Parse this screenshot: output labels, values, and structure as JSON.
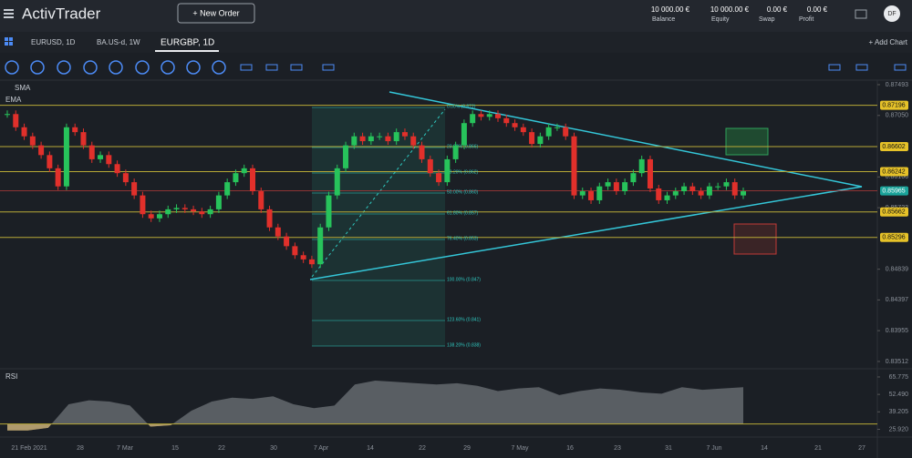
{
  "header": {
    "logo": "ActivTrader",
    "new_order": "+ New Order",
    "stats": [
      {
        "value": "10 000.00 €",
        "label": "Balance"
      },
      {
        "value": "10 000.00 €",
        "label": "Equity"
      },
      {
        "value": "0.00 €",
        "label": "Swap"
      },
      {
        "value": "0.00 €",
        "label": "Profit"
      }
    ],
    "avatar": "DF"
  },
  "tabs": [
    "EURUSD, 1D",
    "BA.US-d, 1W",
    "EURGBP, 1D"
  ],
  "add_chart": "+ Add Chart",
  "indicators": [
    "SMA",
    "EMA"
  ],
  "chart_data": {
    "type": "candlestick",
    "closes": [
      0.8707,
      0.8688,
      0.8675,
      0.8662,
      0.8648,
      0.8629,
      0.8603,
      0.8688,
      0.8681,
      0.8662,
      0.8642,
      0.8648,
      0.8635,
      0.8622,
      0.8609,
      0.859,
      0.8563,
      0.8557,
      0.8563,
      0.857,
      0.8572,
      0.857,
      0.8567,
      0.8563,
      0.857,
      0.859,
      0.8609,
      0.8622,
      0.8629,
      0.8596,
      0.857,
      0.8544,
      0.8531,
      0.8517,
      0.8504,
      0.8498,
      0.8491,
      0.8544,
      0.859,
      0.8629,
      0.8662,
      0.8675,
      0.8668,
      0.8675,
      0.8675,
      0.8668,
      0.8681,
      0.8675,
      0.8662,
      0.8642,
      0.8622,
      0.8609,
      0.8642,
      0.8662,
      0.8694,
      0.8707,
      0.8703,
      0.8707,
      0.8701,
      0.8694,
      0.8688,
      0.8681,
      0.8664,
      0.8675,
      0.8688,
      0.8688,
      0.8675,
      0.859,
      0.8596,
      0.8583,
      0.8603,
      0.8609,
      0.8596,
      0.8609,
      0.8622,
      0.8642,
      0.86,
      0.8583,
      0.859,
      0.8596,
      0.8603,
      0.8596,
      0.859,
      0.8603,
      0.8603,
      0.8609,
      0.859,
      0.8596
    ],
    "ylim": [
      0.83407,
      0.87558
    ],
    "yticks": [
      {
        "value": 0.87493,
        "label": "0.87493"
      },
      {
        "value": 0.8705,
        "label": "0.87050"
      },
      {
        "value": 0.86166,
        "label": "0.86166"
      },
      {
        "value": 0.85723,
        "label": "0.85723"
      },
      {
        "value": 0.84839,
        "label": "0.84839"
      },
      {
        "value": 0.84397,
        "label": "0.84397"
      },
      {
        "value": 0.83955,
        "label": "0.83955"
      },
      {
        "value": 0.83512,
        "label": "0.83512"
      }
    ],
    "levels": [
      {
        "value": 0.87196,
        "label": "0.87196"
      },
      {
        "value": 0.86602,
        "label": "0.86602"
      },
      {
        "value": 0.86242,
        "label": "0.86242"
      },
      {
        "value": 0.85662,
        "label": "0.85662"
      },
      {
        "value": 0.85296,
        "label": "0.85296"
      }
    ],
    "current": {
      "value": 0.85965,
      "label": "0.85965"
    },
    "fib_labels": [
      "0.00% (0.872)",
      "23.60% (0.866)",
      "38.20% (0.862)",
      "50.00% (0.860)",
      "61.80% (0.857)",
      "76.40% (0.853)",
      "100.00% (0.847)",
      "123.60% (0.841)",
      "138.20% (0.838)"
    ],
    "dates": [
      "21 Feb 2021",
      "28",
      "7 Mar",
      "15",
      "22",
      "30",
      "7 Apr",
      "14",
      "22",
      "29",
      "7 May",
      "16",
      "23",
      "31",
      "7 Jun",
      "14",
      "21",
      "27"
    ]
  },
  "rsi": {
    "title": "RSI",
    "values": [
      25,
      25,
      27,
      45,
      48,
      47,
      44,
      28,
      29,
      40,
      47,
      50,
      49,
      51,
      45,
      42,
      44,
      60,
      63,
      62,
      61,
      60,
      61,
      59,
      55,
      57,
      58,
      52,
      55,
      57,
      56,
      54,
      53,
      58,
      56,
      57,
      58
    ],
    "ylim": [
      20,
      72
    ],
    "yticks": [
      65.775,
      {
        "value": 52.49,
        "label": "52.490"
      },
      39.205,
      {
        "value": 25.92,
        "label": "25.920"
      }
    ],
    "oversold": 30
  }
}
